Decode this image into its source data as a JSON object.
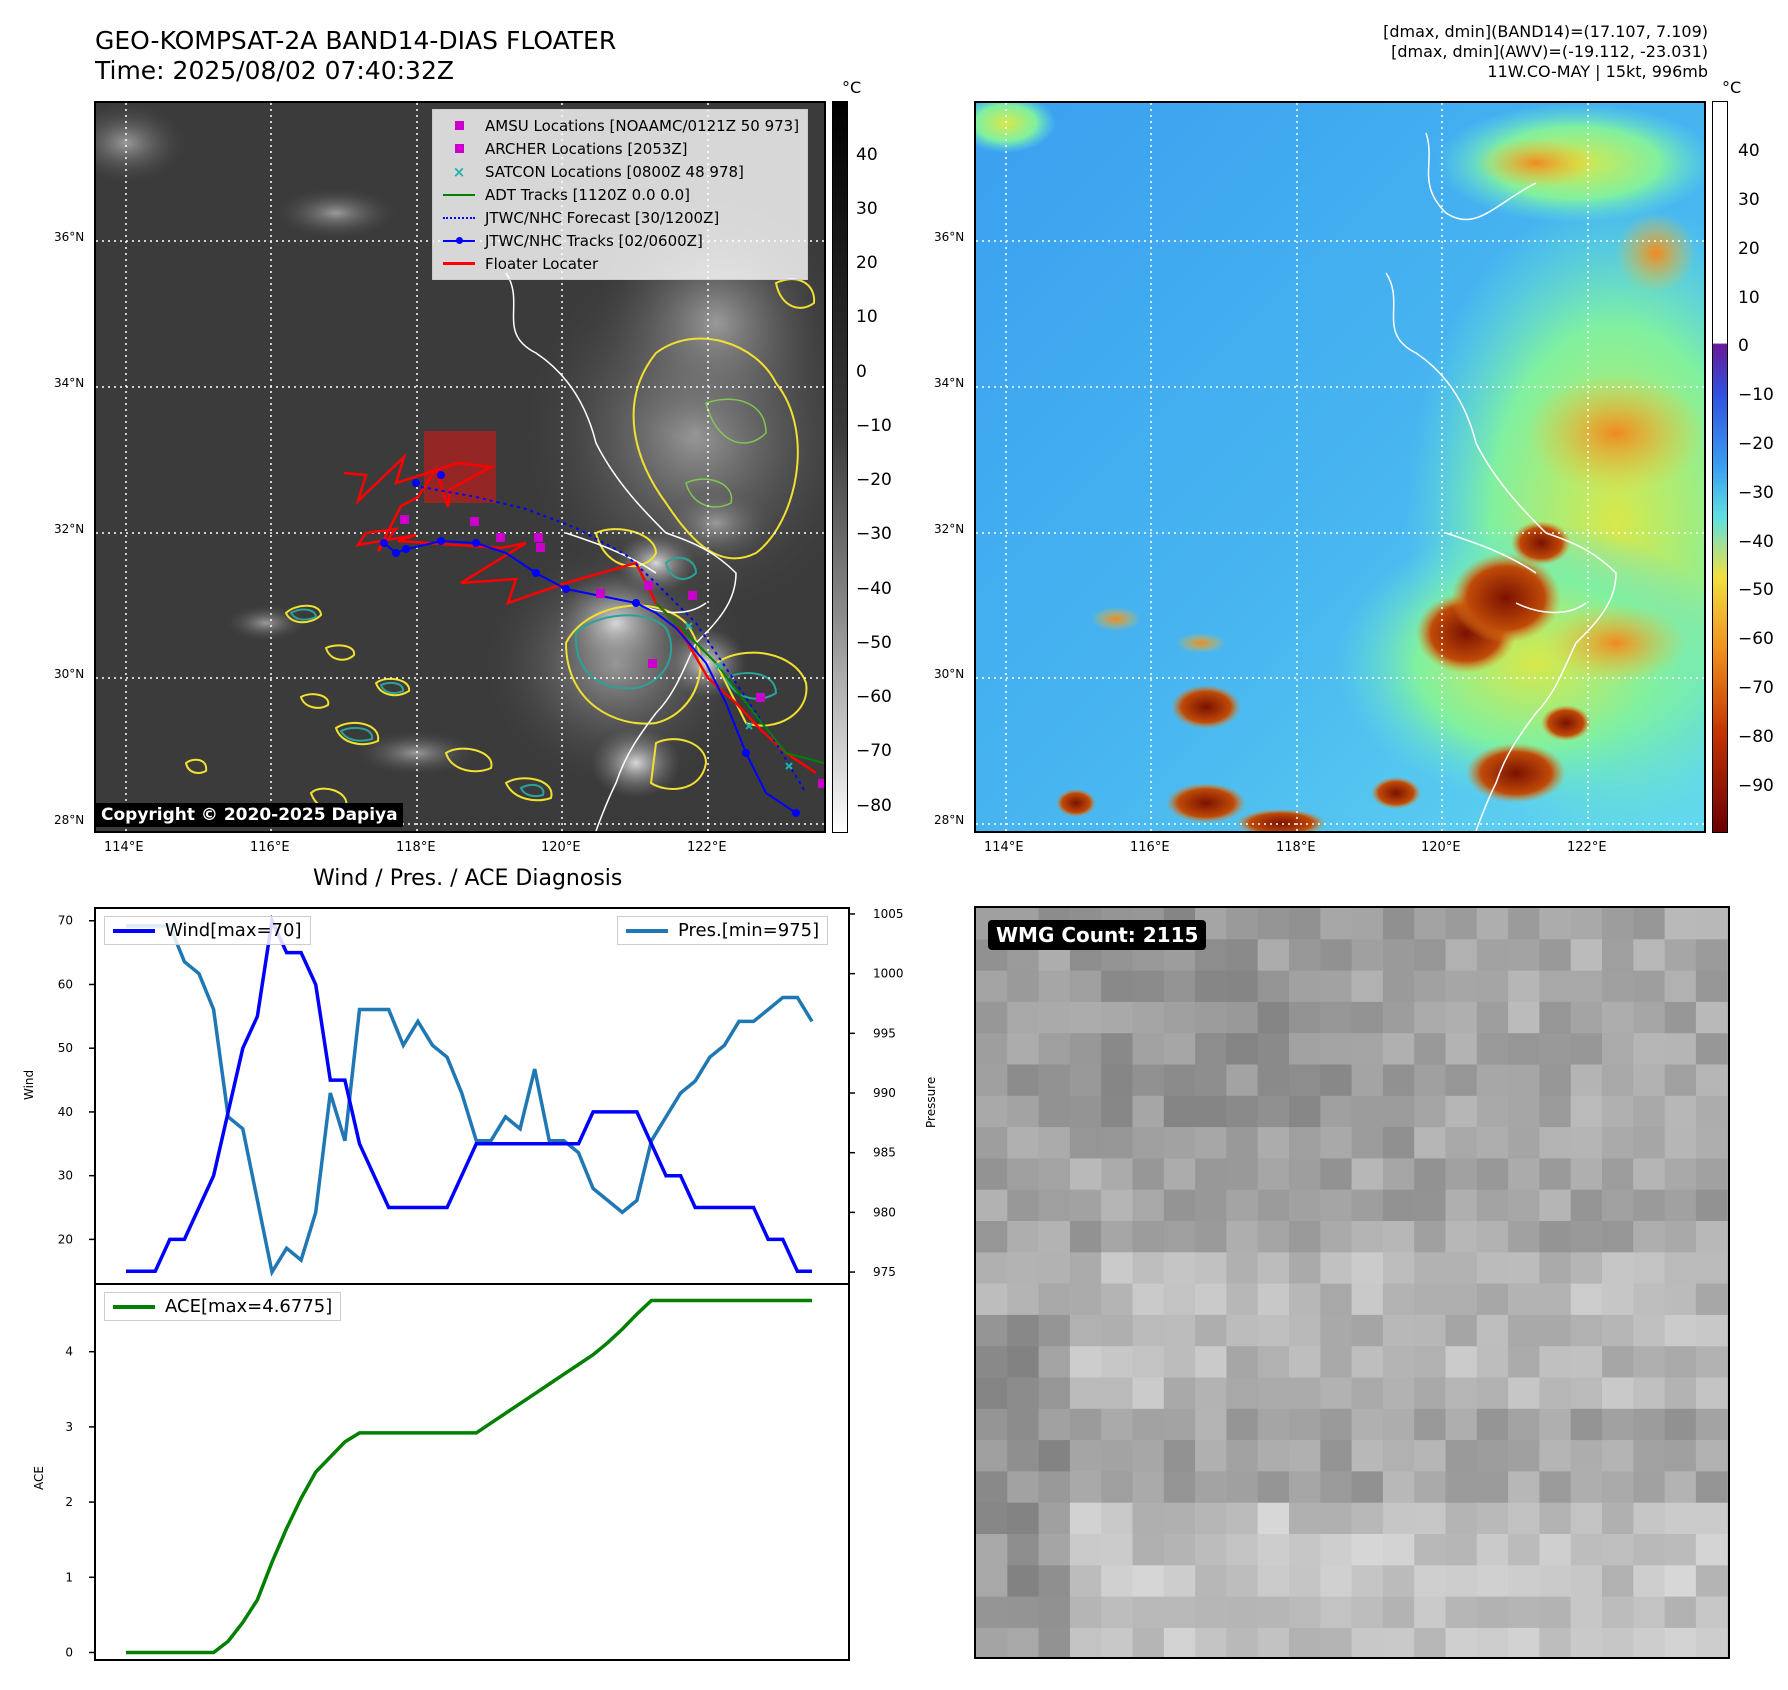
{
  "header": {
    "title": "GEO-KOMPSAT-2A BAND14-DIAS FLOATER",
    "time": "Time: 2025/08/02 07:40:32Z",
    "info_line1": "[dmax, dmin](BAND14)=(17.107, 7.109)",
    "info_line2": "[dmax, dmin](AWV)=(-19.112, -23.031)",
    "info_line3": "11W.CO-MAY | 15kt, 996mb"
  },
  "maps": {
    "lat_labels": [
      "36°N",
      "34°N",
      "32°N",
      "30°N",
      "28°N"
    ],
    "lon_labels": [
      "114°E",
      "116°E",
      "118°E",
      "120°E",
      "122°E"
    ],
    "copyright": "Copyright © 2020-2025 Dapiya",
    "legend": [
      {
        "label": "AMSU Locations [NOAAMC/0121Z 50 973]",
        "color": "#cc00cc",
        "symbol": "square"
      },
      {
        "label": "ARCHER Locations [2053Z]",
        "color": "#cc00cc",
        "symbol": "square"
      },
      {
        "label": "SATCON Locations [0800Z 48 978]",
        "color": "#20b2aa",
        "symbol": "x"
      },
      {
        "label": "ADT Tracks [1120Z 0.0 0.0]",
        "color": "#008000",
        "symbol": "line"
      },
      {
        "label": "JTWC/NHC Forecast [30/1200Z]",
        "color": "#0000ff",
        "symbol": "dotted"
      },
      {
        "label": "JTWC/NHC Tracks [02/0600Z]",
        "color": "#0000ff",
        "symbol": "line-dot"
      },
      {
        "label": "Floater Locater",
        "color": "#ff0000",
        "symbol": "line"
      }
    ],
    "colorbar1": {
      "unit": "°C",
      "ticks": [
        "40",
        "30",
        "20",
        "10",
        "0",
        "−10",
        "−20",
        "−30",
        "−40",
        "−50",
        "−60",
        "−70",
        "−80"
      ]
    },
    "colorbar2": {
      "unit": "°C",
      "ticks": [
        "40",
        "30",
        "20",
        "10",
        "0",
        "−10",
        "−20",
        "−30",
        "−40",
        "−50",
        "−60",
        "−70",
        "−80",
        "−90"
      ]
    }
  },
  "diagnosis": {
    "title": "Wind / Pres. / ACE Diagnosis",
    "wind_legend": "Wind[max=70]",
    "pres_legend": "Pres.[min=975]",
    "ace_legend": "ACE[max=4.6775]",
    "wind_ylabel": "Wind",
    "pres_ylabel": "Pressure",
    "ace_ylabel": "ACE",
    "wind_ticks": [
      "70",
      "60",
      "50",
      "40",
      "30",
      "20"
    ],
    "pres_ticks": [
      "1005",
      "1000",
      "995",
      "990",
      "985",
      "980",
      "975"
    ],
    "ace_ticks": [
      "4",
      "3",
      "2",
      "1",
      "0"
    ]
  },
  "wmg": {
    "label": "WMG Count: 2115"
  },
  "chart_data": [
    {
      "type": "line",
      "title": "Wind / Pres. / ACE Diagnosis",
      "ylabel": "Wind",
      "ylim": [
        13,
        72
      ],
      "series": [
        {
          "name": "Wind[max=70]",
          "color": "#0000ff",
          "values": [
            15,
            15,
            15,
            20,
            20,
            25,
            30,
            40,
            50,
            55,
            70,
            65,
            65,
            60,
            45,
            45,
            35,
            30,
            25,
            25,
            25,
            25,
            25,
            30,
            35,
            35,
            35,
            35,
            35,
            35,
            35,
            35,
            40,
            40,
            40,
            40,
            35,
            30,
            30,
            25,
            25,
            25,
            25,
            25,
            20,
            20,
            15,
            15
          ]
        }
      ]
    },
    {
      "type": "line",
      "ylabel": "Pressure",
      "ylim": [
        974,
        1005.5
      ],
      "series": [
        {
          "name": "Pres.[min=975]",
          "color": "#1f77b4",
          "values": [
            1004,
            1004,
            1004,
            1004,
            1001,
            1000,
            997,
            988,
            987,
            981,
            975,
            977,
            976,
            980,
            990,
            986,
            997,
            997,
            997,
            994,
            996,
            994,
            993,
            990,
            986,
            986,
            988,
            987,
            992,
            986,
            986,
            985,
            982,
            981,
            980,
            981,
            986,
            988,
            990,
            991,
            993,
            994,
            996,
            996,
            997,
            998,
            998,
            996
          ]
        }
      ]
    },
    {
      "type": "line",
      "ylabel": "ACE",
      "ylim": [
        -0.1,
        4.9
      ],
      "series": [
        {
          "name": "ACE[max=4.6775]",
          "color": "#008000",
          "values": [
            0,
            0,
            0,
            0,
            0,
            0,
            0,
            0.15,
            0.4,
            0.7,
            1.2,
            1.65,
            2.05,
            2.4,
            2.6,
            2.8,
            2.92,
            2.92,
            2.92,
            2.92,
            2.92,
            2.92,
            2.92,
            2.92,
            2.92,
            3.05,
            3.18,
            3.31,
            3.44,
            3.57,
            3.7,
            3.83,
            3.96,
            4.12,
            4.3,
            4.5,
            4.68,
            4.68,
            4.68,
            4.68,
            4.68,
            4.68,
            4.68,
            4.68,
            4.68,
            4.68,
            4.68,
            4.68
          ]
        }
      ]
    }
  ]
}
